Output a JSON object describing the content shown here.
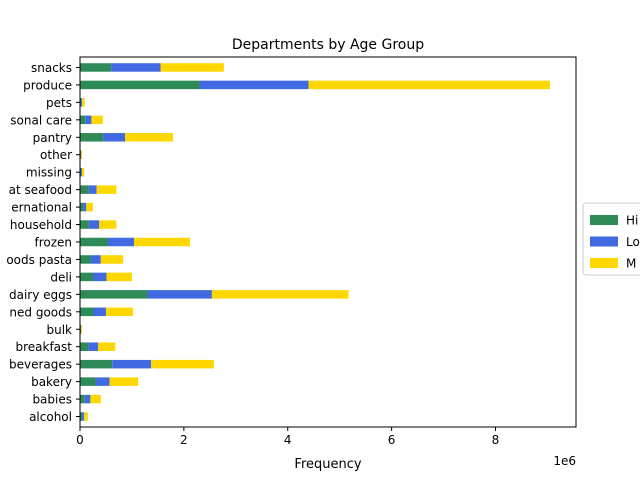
{
  "chart_data": {
    "type": "bar",
    "orientation": "horizontal",
    "stacked": true,
    "title": "Departments by Age Group",
    "xlabel": "Frequency",
    "ylabel": "",
    "x_scale_label": "1e6",
    "xlim": [
      0,
      9.55
    ],
    "x_ticks": [
      "0",
      "2",
      "4",
      "6",
      "8"
    ],
    "x_tick_values": [
      0,
      2,
      4,
      6,
      8
    ],
    "grid": false,
    "legend_position": "right (partially cut off)",
    "categories": [
      "alcohol",
      "babies",
      "bakery",
      "beverages",
      "breakfast",
      "bulk",
      "canned goods",
      "dairy eggs",
      "deli",
      "dry goods pasta",
      "frozen",
      "household",
      "international",
      "meat seafood",
      "missing",
      "other",
      "pantry",
      "personal care",
      "pets",
      "produce",
      "snacks"
    ],
    "category_labels_visible": [
      "alcohol",
      "babies",
      "bakery",
      "beverages",
      "breakfast",
      "bulk",
      "ned goods",
      "dairy eggs",
      "deli",
      "oods pasta",
      "frozen",
      "household",
      "ernational",
      "at seafood",
      "missing",
      "other",
      "pantry",
      "sonal care",
      "pets",
      "produce",
      "snacks"
    ],
    "series": [
      {
        "name": "Hi",
        "color": "#2e8b57",
        "values": [
          0.04,
          0.09,
          0.3,
          0.62,
          0.16,
          0.01,
          0.26,
          1.3,
          0.25,
          0.21,
          0.54,
          0.17,
          0.06,
          0.17,
          0.02,
          0.01,
          0.45,
          0.1,
          0.02,
          2.3,
          0.6
        ]
      },
      {
        "name": "Lo",
        "color": "#4169e1",
        "values": [
          0.04,
          0.11,
          0.27,
          0.75,
          0.19,
          0.01,
          0.24,
          1.24,
          0.26,
          0.19,
          0.5,
          0.2,
          0.06,
          0.15,
          0.02,
          0.01,
          0.42,
          0.12,
          0.02,
          2.1,
          0.95
        ]
      },
      {
        "name": "M",
        "color": "#ffd700",
        "values": [
          0.07,
          0.2,
          0.55,
          1.21,
          0.33,
          0.02,
          0.52,
          2.63,
          0.49,
          0.43,
          1.08,
          0.33,
          0.13,
          0.38,
          0.04,
          0.02,
          0.92,
          0.22,
          0.05,
          4.65,
          1.22
        ]
      }
    ]
  }
}
